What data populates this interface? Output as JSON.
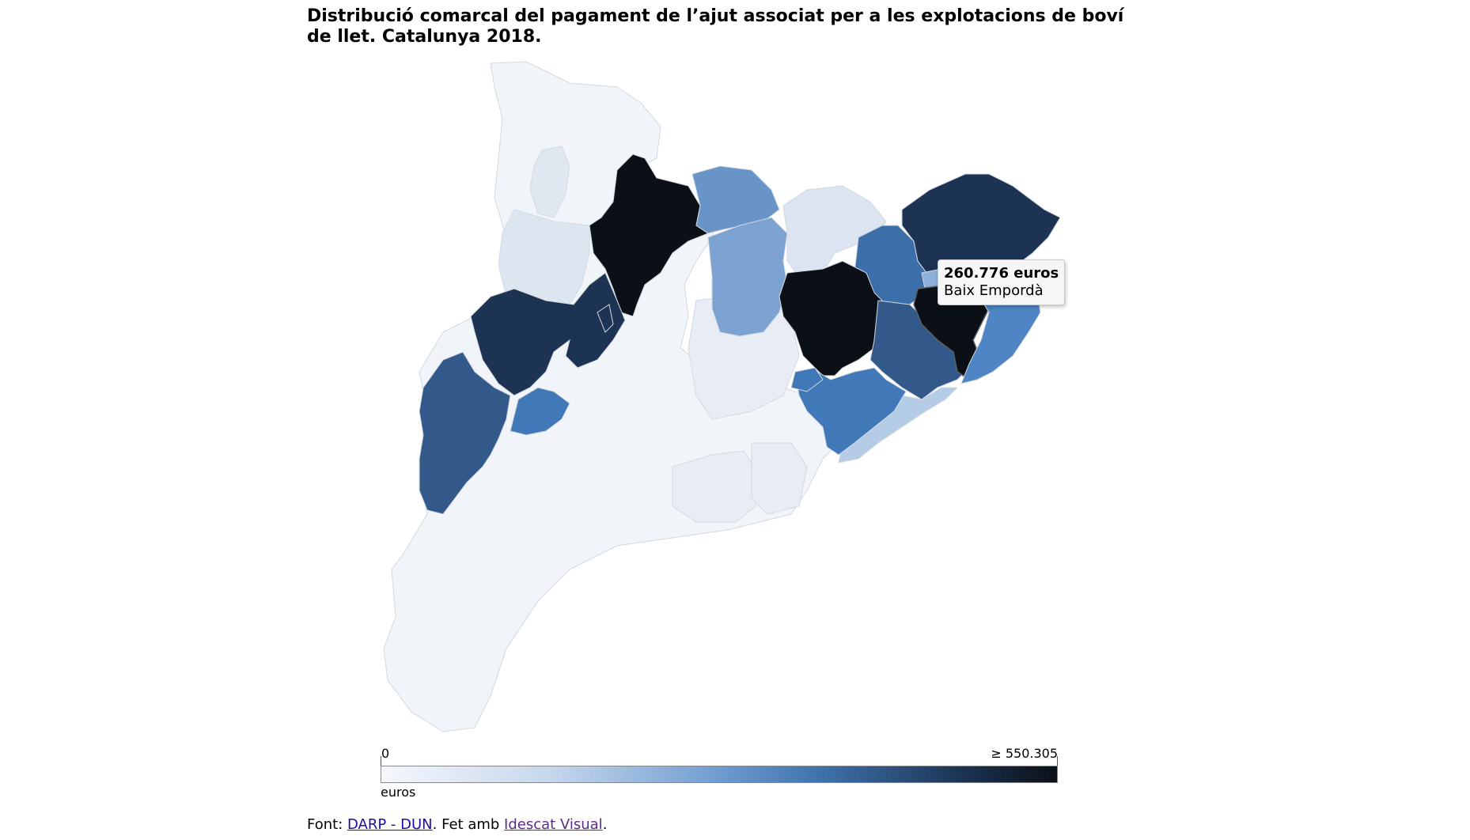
{
  "title": "Distribució comarcal del pagament de l’ajut associat per a les explotacions de boví de llet. Catalunya 2018.",
  "tooltip": {
    "value": "260.776 euros",
    "region": "Baix Empordà"
  },
  "legend": {
    "min_label": "0",
    "max_label": "≥ 550.305",
    "unit": "euros"
  },
  "source": {
    "prefix": "Font: ",
    "link1": "DARP - DUN",
    "middle": ". Fet amb ",
    "link2": "Idescat Visual",
    "suffix": "."
  },
  "colors": {
    "scale": [
      "#f5f7fb",
      "#c6d7ec",
      "#6f9cd0",
      "#3f72ad",
      "#1d3656",
      "#0b1017"
    ]
  }
}
